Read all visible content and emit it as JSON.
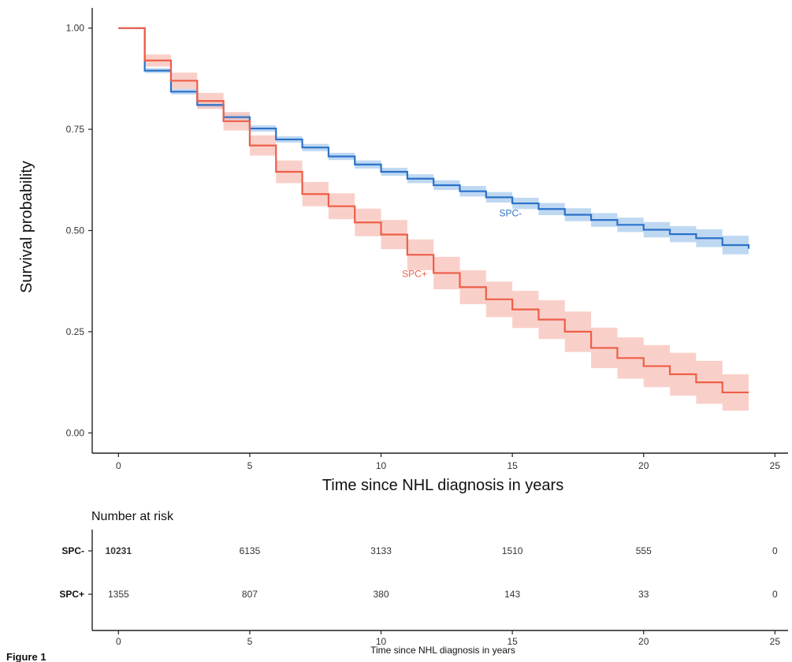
{
  "chart_data": {
    "type": "line",
    "subtype": "kaplan-meier-step",
    "xlabel": "Time since NHL diagnosis in years",
    "ylabel": "Survival probability",
    "xlim": [
      -1,
      25.5
    ],
    "ylim": [
      -0.05,
      1.05
    ],
    "x_ticks": [
      0,
      5,
      10,
      15,
      20,
      25
    ],
    "y_ticks": [
      0.0,
      0.25,
      0.5,
      0.75,
      1.0
    ],
    "x_tick_labels": [
      "0",
      "5",
      "10",
      "15",
      "20",
      "25"
    ],
    "y_tick_labels": [
      "0.00",
      "0.25",
      "0.50",
      "0.75",
      "1.00"
    ],
    "grid": false,
    "legend": "none",
    "series": [
      {
        "name": "SPC-",
        "color": "#2b72c8",
        "band_color": "#a9cbee",
        "label_at": [
          14.5,
          0.535
        ],
        "x": [
          0,
          1,
          2,
          3,
          4,
          5,
          6,
          7,
          8,
          9,
          10,
          11,
          12,
          13,
          14,
          15,
          16,
          17,
          18,
          19,
          20,
          21,
          22,
          23,
          24
        ],
        "y": [
          1.0,
          0.895,
          0.843,
          0.81,
          0.78,
          0.752,
          0.725,
          0.705,
          0.683,
          0.663,
          0.645,
          0.628,
          0.612,
          0.597,
          0.582,
          0.567,
          0.553,
          0.539,
          0.526,
          0.514,
          0.502,
          0.491,
          0.481,
          0.464,
          0.455
        ],
        "lower": [
          1.0,
          0.889,
          0.836,
          0.803,
          0.772,
          0.744,
          0.717,
          0.696,
          0.674,
          0.653,
          0.635,
          0.617,
          0.6,
          0.584,
          0.569,
          0.553,
          0.538,
          0.523,
          0.509,
          0.496,
          0.483,
          0.471,
          0.459,
          0.441,
          0.43
        ],
        "upper": [
          1.0,
          0.901,
          0.85,
          0.817,
          0.788,
          0.76,
          0.733,
          0.714,
          0.692,
          0.673,
          0.655,
          0.639,
          0.624,
          0.61,
          0.595,
          0.581,
          0.568,
          0.555,
          0.543,
          0.532,
          0.521,
          0.511,
          0.503,
          0.487,
          0.48
        ]
      },
      {
        "name": "SPC+",
        "color": "#ee5e48",
        "band_color": "#f7c0b7",
        "label_at": [
          10.8,
          0.385
        ],
        "x": [
          0,
          1,
          2,
          3,
          4,
          5,
          6,
          7,
          8,
          9,
          10,
          11,
          12,
          13,
          14,
          15,
          16,
          17,
          18,
          19,
          20,
          21,
          22,
          23,
          24
        ],
        "y": [
          1.0,
          0.92,
          0.87,
          0.82,
          0.77,
          0.71,
          0.645,
          0.59,
          0.56,
          0.52,
          0.49,
          0.44,
          0.395,
          0.36,
          0.33,
          0.305,
          0.28,
          0.25,
          0.21,
          0.185,
          0.165,
          0.145,
          0.125,
          0.1,
          0.1
        ],
        "lower": [
          1.0,
          0.905,
          0.85,
          0.8,
          0.747,
          0.685,
          0.617,
          0.56,
          0.528,
          0.486,
          0.454,
          0.402,
          0.355,
          0.318,
          0.286,
          0.259,
          0.232,
          0.2,
          0.16,
          0.134,
          0.113,
          0.092,
          0.072,
          0.055,
          0.055
        ],
        "upper": [
          1.0,
          0.935,
          0.89,
          0.84,
          0.793,
          0.735,
          0.673,
          0.62,
          0.592,
          0.554,
          0.526,
          0.478,
          0.435,
          0.402,
          0.374,
          0.351,
          0.328,
          0.3,
          0.26,
          0.236,
          0.217,
          0.198,
          0.178,
          0.145,
          0.145
        ]
      }
    ],
    "risk_table": {
      "title": "Number at risk",
      "times": [
        0,
        5,
        10,
        15,
        20,
        25
      ],
      "rows": [
        {
          "group": "SPC-",
          "values": [
            "10231",
            "6135",
            "3133",
            "1510",
            "555",
            "0"
          ]
        },
        {
          "group": "SPC+",
          "values": [
            "1355",
            "807",
            "380",
            "143",
            "33",
            "0"
          ]
        }
      ],
      "xlabel": "Time since NHL diagnosis in years",
      "x_tick_labels": [
        "0",
        "5",
        "10",
        "15",
        "20",
        "25"
      ]
    },
    "caption": "Figure 1"
  }
}
